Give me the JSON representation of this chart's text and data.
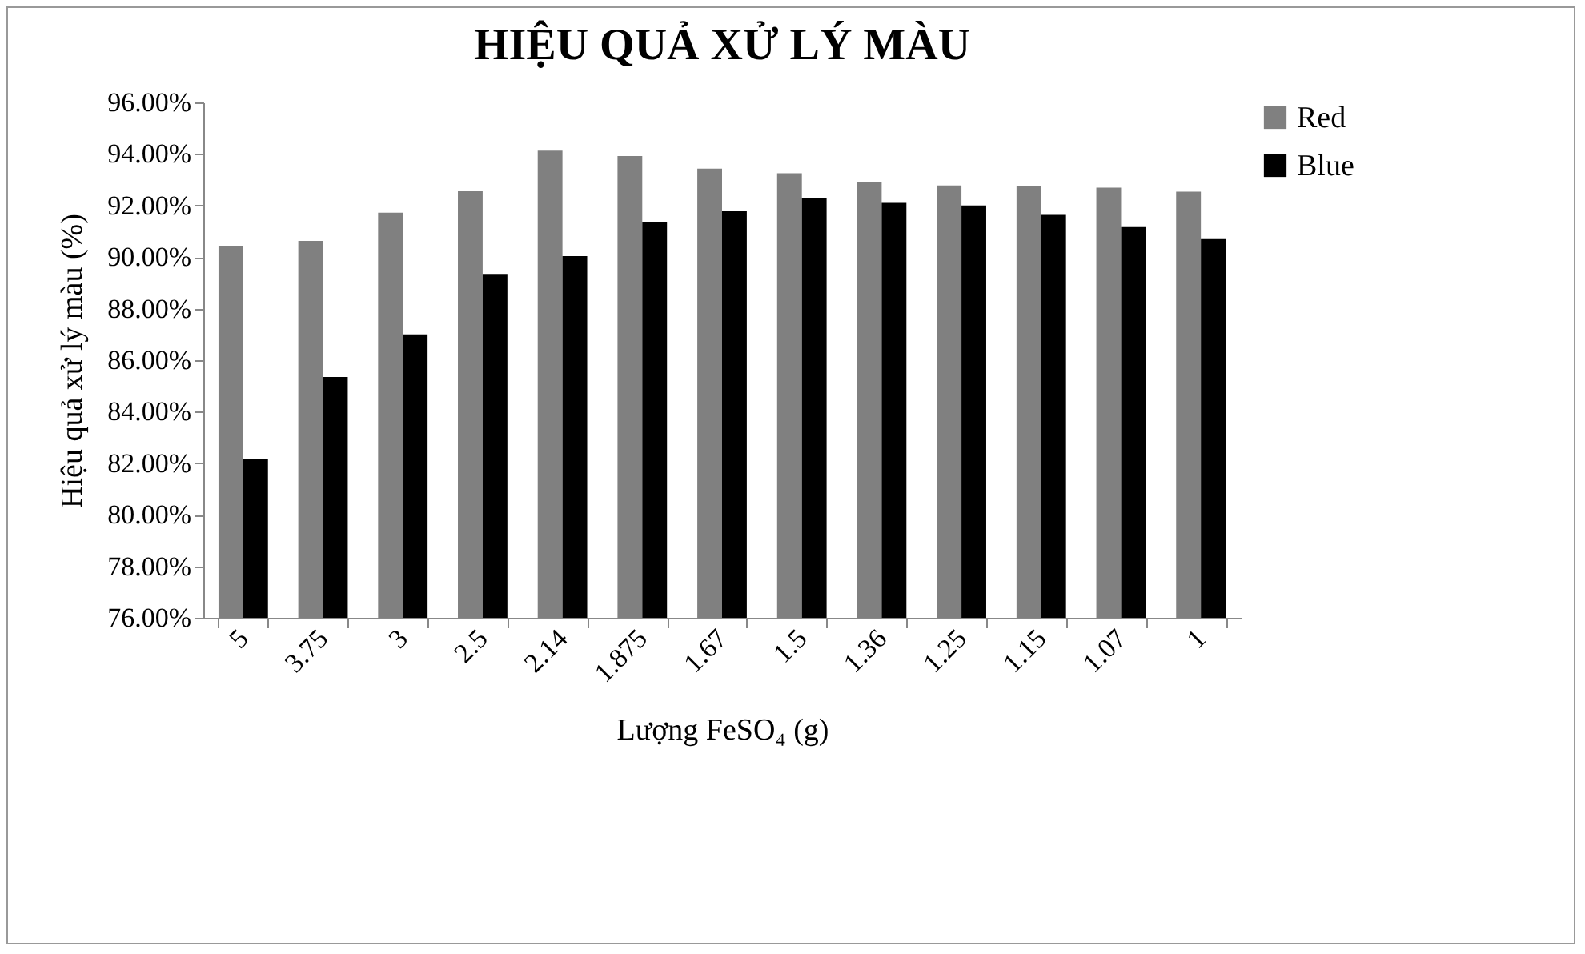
{
  "chart_data": {
    "type": "bar",
    "title": "HIỆU QUẢ XỬ LÝ MÀU",
    "xlabel": "Lượng FeSO₄ (g)",
    "ylabel": "Hiệu quả xử lý màu (%)",
    "categories": [
      "5",
      "3.75",
      "3",
      "2.5",
      "2.14",
      "1.875",
      "1.67",
      "1.5",
      "1.36",
      "1.25",
      "1.15",
      "1.07",
      "1"
    ],
    "series": [
      {
        "name": "Red",
        "color": "#808080",
        "values": [
          90.44,
          90.63,
          91.72,
          92.55,
          94.13,
          93.92,
          93.43,
          93.25,
          92.92,
          92.78,
          92.75,
          92.69,
          92.54
        ]
      },
      {
        "name": "Blue",
        "color": "#000000",
        "values": [
          82.15,
          85.35,
          87.0,
          89.35,
          90.04,
          91.36,
          91.78,
          92.28,
          92.1,
          92.0,
          91.64,
          91.16,
          90.7
        ]
      }
    ],
    "ylim": [
      76,
      96
    ],
    "yticks": [
      {
        "value": 76,
        "label": "76.00%"
      },
      {
        "value": 78,
        "label": "78.00%"
      },
      {
        "value": 80,
        "label": "80.00%"
      },
      {
        "value": 82,
        "label": "82.00%"
      },
      {
        "value": 84,
        "label": "84.00%"
      },
      {
        "value": 86,
        "label": "86.00%"
      },
      {
        "value": 88,
        "label": "88.00%"
      },
      {
        "value": 90,
        "label": "90.00%"
      },
      {
        "value": 92,
        "label": "92.00%"
      },
      {
        "value": 94,
        "label": "94.00%"
      },
      {
        "value": 96,
        "label": "96.00%"
      }
    ],
    "grid": false,
    "legend": "right"
  }
}
